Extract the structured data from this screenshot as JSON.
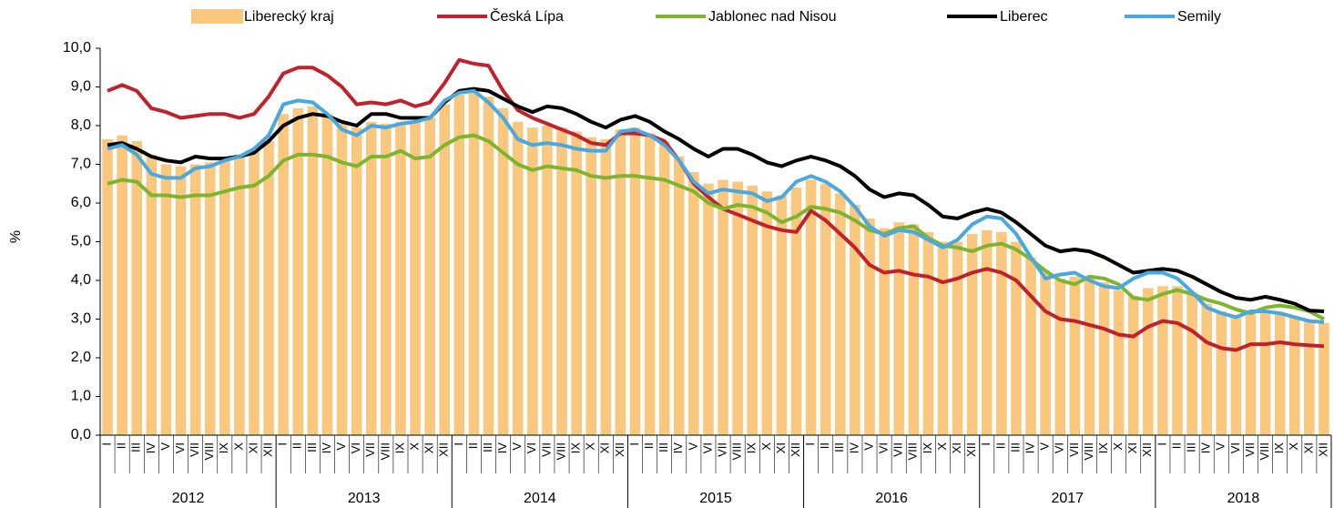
{
  "chart_data": {
    "type": "bar-line",
    "y_label": "%",
    "categories": [
      "I",
      "II",
      "III",
      "IV",
      "V",
      "VI",
      "VII",
      "VIII",
      "IX",
      "X",
      "XI",
      "XII",
      "I",
      "II",
      "III",
      "IV",
      "V",
      "VI",
      "VII",
      "VIII",
      "IX",
      "X",
      "XI",
      "XII",
      "I",
      "II",
      "III",
      "IV",
      "V",
      "VI",
      "VII",
      "VIII",
      "IX",
      "X",
      "XI",
      "XII",
      "I",
      "II",
      "III",
      "IV",
      "V",
      "VI",
      "VII",
      "VIII",
      "IX",
      "X",
      "XI",
      "XII",
      "I",
      "II",
      "III",
      "IV",
      "V",
      "VI",
      "VII",
      "VIII",
      "IX",
      "X",
      "XI",
      "XII",
      "I",
      "II",
      "III",
      "IV",
      "V",
      "VI",
      "VII",
      "VIII",
      "IX",
      "X",
      "XI",
      "XII",
      "I",
      "II",
      "III",
      "IV",
      "V",
      "VI",
      "VII",
      "VIII",
      "IX",
      "X",
      "XI",
      "XII"
    ],
    "years": [
      "2012",
      "2013",
      "2014",
      "2015",
      "2016",
      "2017",
      "2018"
    ],
    "ylim": [
      0,
      10
    ],
    "yticks": [
      {
        "value": 0,
        "label": "0,0"
      },
      {
        "value": 1,
        "label": "1,0"
      },
      {
        "value": 2,
        "label": "2,0"
      },
      {
        "value": 3,
        "label": "3,0"
      },
      {
        "value": 4,
        "label": "4,0"
      },
      {
        "value": 5,
        "label": "5,0"
      },
      {
        "value": 6,
        "label": "6,0"
      },
      {
        "value": 7,
        "label": "7,0"
      },
      {
        "value": 8,
        "label": "8,0"
      },
      {
        "value": 9,
        "label": "9,0"
      },
      {
        "value": 10,
        "label": "10,0"
      }
    ],
    "grid": false,
    "series": [
      {
        "name": "Liberecký kraj",
        "kind": "bar",
        "color": "#fac77f",
        "values": [
          7.65,
          7.75,
          7.6,
          7.25,
          7.0,
          6.95,
          7.0,
          7.05,
          7.15,
          7.25,
          7.35,
          7.6,
          8.3,
          8.45,
          8.5,
          8.3,
          8.05,
          7.95,
          8.1,
          8.05,
          8.1,
          8.1,
          8.2,
          8.55,
          8.8,
          8.9,
          8.75,
          8.45,
          8.1,
          7.95,
          8.0,
          7.95,
          7.85,
          7.7,
          7.65,
          7.9,
          7.95,
          7.8,
          7.6,
          7.2,
          6.8,
          6.5,
          6.6,
          6.55,
          6.45,
          6.3,
          6.2,
          6.4,
          6.6,
          6.5,
          6.25,
          5.95,
          5.6,
          5.35,
          5.5,
          5.45,
          5.25,
          5.0,
          5.0,
          5.2,
          5.3,
          5.25,
          5.0,
          4.6,
          4.2,
          4.05,
          4.1,
          4.05,
          3.95,
          3.75,
          3.6,
          3.8,
          3.85,
          3.85,
          3.7,
          3.4,
          3.2,
          3.1,
          3.2,
          3.2,
          3.15,
          3.05,
          2.95,
          2.9
        ]
      },
      {
        "name": "Česká Lípa",
        "kind": "line",
        "color": "#c0222c",
        "values": [
          8.9,
          9.05,
          8.9,
          8.45,
          8.35,
          8.2,
          8.25,
          8.3,
          8.3,
          8.2,
          8.3,
          8.75,
          9.35,
          9.5,
          9.5,
          9.3,
          9.0,
          8.55,
          8.6,
          8.55,
          8.65,
          8.5,
          8.6,
          9.1,
          9.7,
          9.6,
          9.55,
          8.9,
          8.4,
          8.2,
          8.05,
          7.9,
          7.75,
          7.55,
          7.5,
          7.8,
          7.8,
          7.75,
          7.6,
          7.1,
          6.5,
          6.15,
          5.85,
          5.7,
          5.55,
          5.4,
          5.3,
          5.25,
          5.8,
          5.55,
          5.2,
          4.85,
          4.4,
          4.2,
          4.25,
          4.15,
          4.1,
          3.95,
          4.05,
          4.2,
          4.3,
          4.2,
          4.0,
          3.6,
          3.2,
          3.0,
          2.95,
          2.85,
          2.75,
          2.6,
          2.55,
          2.8,
          2.95,
          2.9,
          2.7,
          2.4,
          2.25,
          2.2,
          2.35,
          2.35,
          2.4,
          2.35,
          2.32,
          2.3
        ]
      },
      {
        "name": "Jablonec nad Nisou",
        "kind": "line",
        "color": "#7db52f",
        "values": [
          6.5,
          6.6,
          6.55,
          6.2,
          6.2,
          6.15,
          6.2,
          6.2,
          6.3,
          6.4,
          6.45,
          6.7,
          7.1,
          7.25,
          7.25,
          7.2,
          7.05,
          6.95,
          7.2,
          7.2,
          7.35,
          7.15,
          7.2,
          7.5,
          7.7,
          7.75,
          7.6,
          7.3,
          7.0,
          6.85,
          6.95,
          6.9,
          6.85,
          6.7,
          6.65,
          6.7,
          6.7,
          6.65,
          6.6,
          6.45,
          6.3,
          6.0,
          5.85,
          5.95,
          5.9,
          5.75,
          5.5,
          5.65,
          5.9,
          5.85,
          5.75,
          5.55,
          5.3,
          5.2,
          5.35,
          5.4,
          5.1,
          4.9,
          4.85,
          4.75,
          4.9,
          4.95,
          4.8,
          4.55,
          4.25,
          4.0,
          3.9,
          4.1,
          4.05,
          3.9,
          3.55,
          3.5,
          3.65,
          3.75,
          3.65,
          3.5,
          3.4,
          3.25,
          3.15,
          3.3,
          3.35,
          3.3,
          3.2,
          3.0
        ]
      },
      {
        "name": "Liberec",
        "kind": "line",
        "color": "#000000",
        "values": [
          7.5,
          7.55,
          7.4,
          7.2,
          7.1,
          7.05,
          7.2,
          7.15,
          7.15,
          7.2,
          7.3,
          7.6,
          8.0,
          8.2,
          8.3,
          8.25,
          8.1,
          8.0,
          8.3,
          8.3,
          8.2,
          8.2,
          8.2,
          8.6,
          8.9,
          8.95,
          8.9,
          8.7,
          8.5,
          8.35,
          8.5,
          8.45,
          8.3,
          8.1,
          7.95,
          8.15,
          8.25,
          8.1,
          7.85,
          7.65,
          7.4,
          7.2,
          7.4,
          7.4,
          7.25,
          7.05,
          6.95,
          7.1,
          7.2,
          7.1,
          6.95,
          6.7,
          6.35,
          6.15,
          6.25,
          6.2,
          5.95,
          5.65,
          5.6,
          5.75,
          5.85,
          5.75,
          5.5,
          5.2,
          4.9,
          4.75,
          4.8,
          4.75,
          4.6,
          4.4,
          4.2,
          4.25,
          4.3,
          4.25,
          4.1,
          3.9,
          3.7,
          3.55,
          3.5,
          3.58,
          3.5,
          3.4,
          3.22,
          3.2
        ]
      },
      {
        "name": "Semily",
        "kind": "line",
        "color": "#4aa8e0",
        "values": [
          7.4,
          7.5,
          7.25,
          6.75,
          6.65,
          6.65,
          6.9,
          6.95,
          7.1,
          7.2,
          7.4,
          7.75,
          8.55,
          8.65,
          8.6,
          8.3,
          7.9,
          7.75,
          8.0,
          7.95,
          8.05,
          8.1,
          8.2,
          8.65,
          8.85,
          8.9,
          8.6,
          8.2,
          7.65,
          7.5,
          7.55,
          7.5,
          7.4,
          7.35,
          7.35,
          7.85,
          7.9,
          7.75,
          7.5,
          7.1,
          6.55,
          6.25,
          6.35,
          6.3,
          6.25,
          6.05,
          6.15,
          6.55,
          6.7,
          6.55,
          6.3,
          5.9,
          5.4,
          5.15,
          5.3,
          5.25,
          5.05,
          4.85,
          5.05,
          5.45,
          5.65,
          5.6,
          5.2,
          4.6,
          4.05,
          4.15,
          4.2,
          4.0,
          3.85,
          3.8,
          4.05,
          4.2,
          4.2,
          4.05,
          3.7,
          3.3,
          3.15,
          3.05,
          3.2,
          3.2,
          3.15,
          3.05,
          2.95,
          2.92
        ]
      }
    ]
  }
}
